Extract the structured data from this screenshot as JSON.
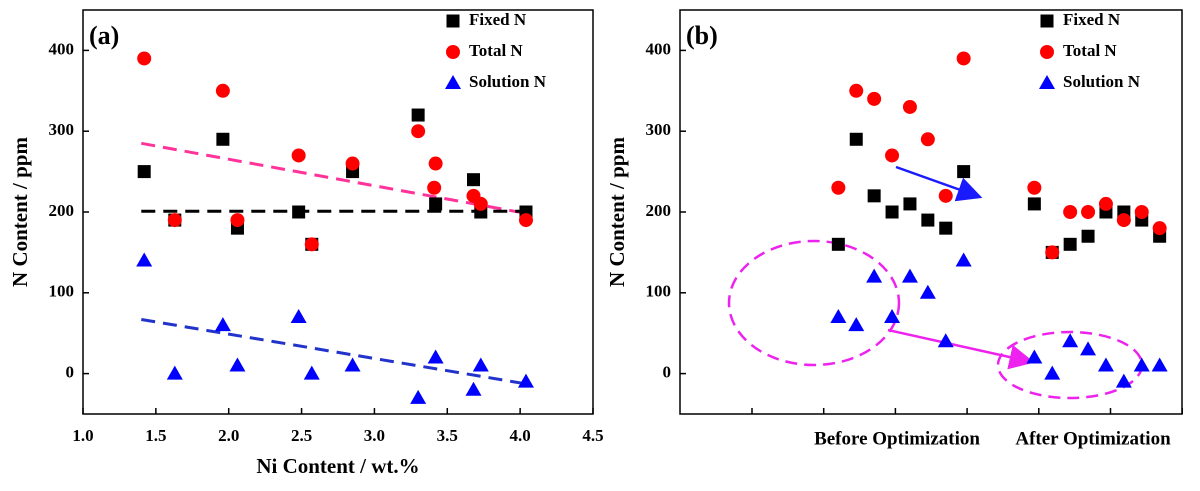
{
  "chart_data": [
    {
      "type": "scatter",
      "panel_label": "(a)",
      "xlabel": "Ni Content / wt.%",
      "ylabel": "N Content / ppm",
      "xlim": [
        1.0,
        4.5
      ],
      "xticks": [
        {
          "value": 1.0,
          "label": "1.0"
        },
        1.5,
        {
          "value": 2.0,
          "label": "2.0"
        },
        2.5,
        {
          "value": 3.0,
          "label": "3.0"
        },
        3.5,
        {
          "value": 4.0,
          "label": "4.0"
        },
        4.5
      ],
      "ylim": [
        -50,
        450
      ],
      "yticks": [
        0,
        100,
        200,
        300,
        400
      ],
      "series": [
        {
          "name": "Fixed N",
          "color": "#000000",
          "marker": "square",
          "x": [
            1.42,
            1.63,
            1.96,
            2.06,
            2.48,
            2.57,
            2.85,
            3.3,
            3.42,
            3.68,
            3.73,
            4.04
          ],
          "values": [
            250,
            190,
            290,
            180,
            200,
            160,
            250,
            320,
            210,
            240,
            200,
            200
          ]
        },
        {
          "name": "Total N",
          "color": "#ff0000",
          "marker": "circle",
          "x": [
            1.42,
            1.63,
            1.96,
            2.06,
            2.48,
            2.57,
            2.85,
            3.3,
            3.42,
            3.41,
            3.68,
            3.73,
            4.04
          ],
          "values": [
            390,
            190,
            350,
            190,
            270,
            160,
            260,
            300,
            260,
            230,
            220,
            210,
            190
          ]
        },
        {
          "name": "Solution N",
          "color": "#0000ff",
          "marker": "triangle",
          "x": [
            1.42,
            1.63,
            1.96,
            2.06,
            2.48,
            2.57,
            2.85,
            3.3,
            3.42,
            3.68,
            3.73,
            4.04
          ],
          "values": [
            140,
            0,
            60,
            10,
            70,
            0,
            10,
            -30,
            20,
            -20,
            10,
            -10
          ]
        }
      ],
      "trendlines": [
        {
          "color": "#ff3399",
          "x": [
            1.4,
            4.05
          ],
          "values": [
            285,
            198
          ]
        },
        {
          "color": "#000000",
          "x": [
            1.4,
            4.05
          ],
          "values": [
            201,
            201
          ]
        },
        {
          "color": "#2233cc",
          "x": [
            1.4,
            4.05
          ],
          "values": [
            67,
            -13
          ]
        }
      ]
    },
    {
      "type": "scatter",
      "panel_label": "(b)",
      "ylabel": "N Content / ppm",
      "categories": [
        "Before Optimization",
        "After Optimization"
      ],
      "ylim": [
        -50,
        450
      ],
      "yticks": [
        0,
        100,
        200,
        300,
        400
      ],
      "series": [
        {
          "name": "Fixed N",
          "color": "#000000",
          "marker": "square",
          "values": [
            [
              160,
              290,
              220,
              200,
              210,
              190,
              180,
              250
            ],
            [
              210,
              150,
              160,
              170,
              200,
              200,
              190,
              170
            ]
          ]
        },
        {
          "name": "Total N",
          "color": "#ff0000",
          "marker": "circle",
          "values": [
            [
              230,
              350,
              340,
              270,
              330,
              290,
              220,
              390
            ],
            [
              230,
              150,
              200,
              200,
              210,
              190,
              200,
              180
            ]
          ]
        },
        {
          "name": "Solution N",
          "color": "#0000ff",
          "marker": "triangle",
          "values": [
            [
              70,
              60,
              120,
              70,
              120,
              100,
              40,
              140
            ],
            [
              20,
              0,
              40,
              30,
              10,
              -10,
              10,
              10
            ]
          ]
        }
      ]
    }
  ]
}
